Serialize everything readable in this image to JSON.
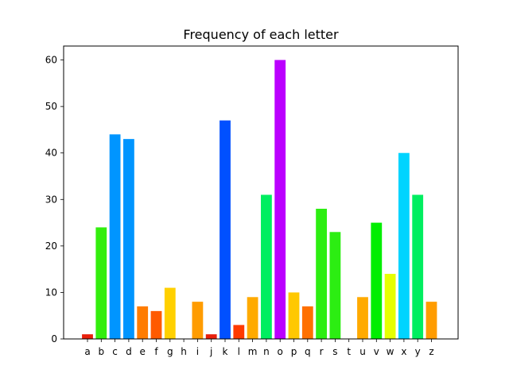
{
  "chart_data": {
    "type": "bar",
    "title": "Frequency of each letter",
    "xlabel": "",
    "ylabel": "",
    "ylim": [
      0,
      63
    ],
    "y_ticks": [
      0,
      10,
      20,
      30,
      40,
      50,
      60
    ],
    "grid": false,
    "categories": [
      "a",
      "b",
      "c",
      "d",
      "e",
      "f",
      "g",
      "h",
      "i",
      "j",
      "k",
      "l",
      "m",
      "n",
      "o",
      "p",
      "q",
      "r",
      "s",
      "t",
      "u",
      "v",
      "w",
      "x",
      "y",
      "z"
    ],
    "values": [
      1,
      24,
      44,
      43,
      7,
      6,
      11,
      0,
      8,
      1,
      47,
      3,
      9,
      31,
      60,
      10,
      7,
      28,
      23,
      0,
      9,
      25,
      14,
      40,
      31,
      8
    ],
    "colors": [
      "#e8200c",
      "#33ee0e",
      "#0095ff",
      "#0095ff",
      "#ff7c00",
      "#ff5a00",
      "#ffd000",
      "#ffffff",
      "#ff9c00",
      "#e8200c",
      "#0050ff",
      "#ff3a00",
      "#ffaa00",
      "#00ee60",
      "#bb00ff",
      "#ffc800",
      "#ff7000",
      "#2cee12",
      "#2cee12",
      "#ffffff",
      "#ffaa00",
      "#00ee00",
      "#e6ff00",
      "#00d4ff",
      "#00ee60",
      "#ff9c00"
    ]
  }
}
